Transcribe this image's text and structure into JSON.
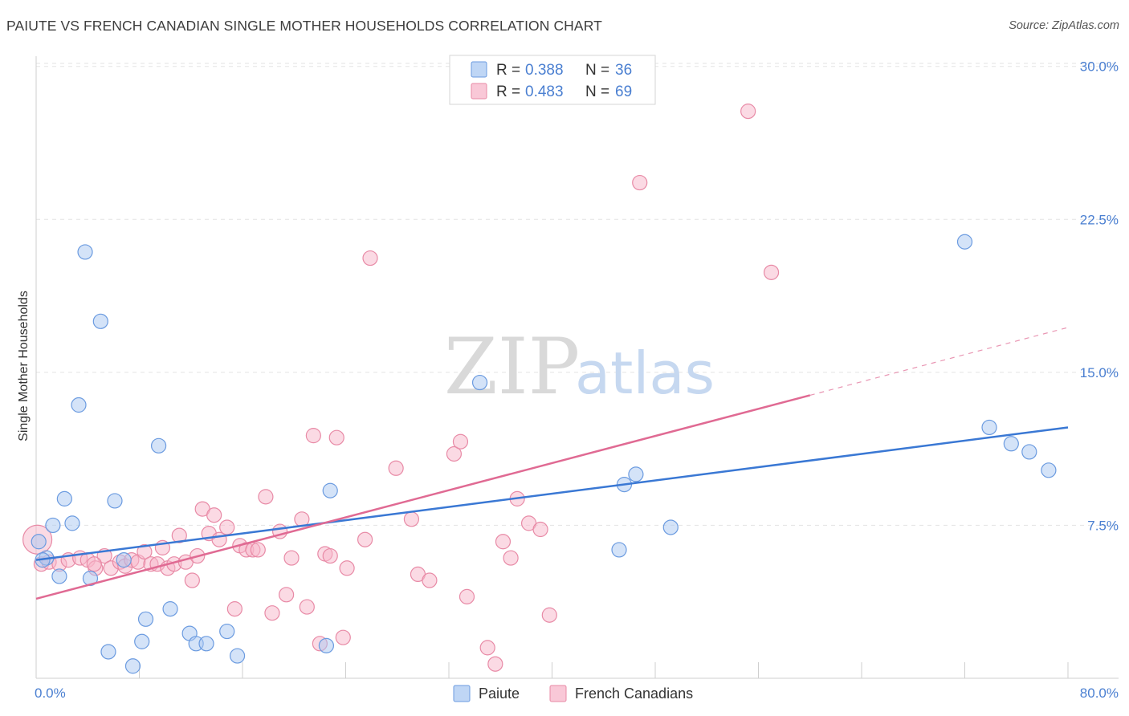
{
  "header": {
    "title": "PAIUTE VS FRENCH CANADIAN SINGLE MOTHER HOUSEHOLDS CORRELATION CHART",
    "source": "Source: ZipAtlas.com"
  },
  "watermark": {
    "zip": "ZIP",
    "atlas": "atlas"
  },
  "legend": {
    "rows": [
      {
        "r_label": "R =",
        "r_value": "0.388",
        "n_label": "N =",
        "n_value": "36"
      },
      {
        "r_label": "R =",
        "r_value": "0.483",
        "n_label": "N =",
        "n_value": "69"
      }
    ]
  },
  "bottom_legend": {
    "paiute": "Paiute",
    "french": "French Canadians"
  },
  "colors": {
    "paiute_fill": "#a9c8f2",
    "paiute_stroke": "#6b9be0",
    "paiute_line": "#3a78d4",
    "french_fill": "#f7b6c9",
    "french_stroke": "#e88aa6",
    "french_line": "#e06a93",
    "grid": "#e3e3e3",
    "axis_text": "#4a7fd1"
  },
  "chart_data": {
    "type": "scatter",
    "title": "PAIUTE VS FRENCH CANADIAN SINGLE MOTHER HOUSEHOLDS CORRELATION CHART",
    "xlabel": "",
    "ylabel": "Single Mother Households",
    "xlim": [
      0,
      80
    ],
    "ylim": [
      0,
      30.5
    ],
    "x_tick_labels": [
      "0.0%",
      "80.0%"
    ],
    "y_ticks": [
      7.5,
      15.0,
      22.5,
      30.0
    ],
    "y_tick_labels": [
      "7.5%",
      "15.0%",
      "22.5%",
      "30.0%"
    ],
    "grid": true,
    "legend_position": "top-center",
    "series": [
      {
        "name": "Paiute",
        "r": 0.388,
        "n": 36,
        "trend": {
          "x": [
            0,
            80
          ],
          "y": [
            5.8,
            12.3
          ],
          "dashed_from": null
        },
        "points": [
          [
            0.2,
            6.7
          ],
          [
            0.8,
            5.9
          ],
          [
            1.3,
            7.5
          ],
          [
            1.8,
            5.0
          ],
          [
            2.2,
            8.8
          ],
          [
            2.8,
            7.6
          ],
          [
            3.3,
            13.4
          ],
          [
            3.8,
            20.9
          ],
          [
            4.2,
            4.9
          ],
          [
            5.0,
            17.5
          ],
          [
            5.6,
            1.3
          ],
          [
            6.1,
            8.7
          ],
          [
            6.8,
            5.8
          ],
          [
            7.5,
            0.6
          ],
          [
            8.2,
            1.8
          ],
          [
            8.5,
            2.9
          ],
          [
            9.5,
            11.4
          ],
          [
            10.4,
            3.4
          ],
          [
            11.9,
            2.2
          ],
          [
            12.4,
            1.7
          ],
          [
            13.2,
            1.7
          ],
          [
            14.8,
            2.3
          ],
          [
            15.6,
            1.1
          ],
          [
            22.5,
            1.6
          ],
          [
            22.8,
            9.2
          ],
          [
            34.4,
            14.5
          ],
          [
            45.2,
            6.3
          ],
          [
            45.6,
            9.5
          ],
          [
            46.5,
            10.0
          ],
          [
            49.2,
            7.4
          ],
          [
            72.0,
            21.4
          ],
          [
            73.9,
            12.3
          ],
          [
            75.6,
            11.5
          ],
          [
            77.0,
            11.1
          ],
          [
            78.5,
            10.2
          ],
          [
            0.5,
            5.8
          ]
        ]
      },
      {
        "name": "French Canadians",
        "r": 0.483,
        "n": 69,
        "trend": {
          "x": [
            0,
            80
          ],
          "y": [
            3.9,
            17.2
          ],
          "dashed_from": 60
        },
        "points": [
          [
            0.1,
            6.8
          ],
          [
            0.4,
            5.6
          ],
          [
            1.0,
            5.7
          ],
          [
            1.8,
            5.6
          ],
          [
            2.5,
            5.8
          ],
          [
            3.4,
            5.9
          ],
          [
            4.0,
            5.8
          ],
          [
            4.6,
            5.4
          ],
          [
            5.3,
            6.0
          ],
          [
            5.8,
            5.4
          ],
          [
            6.5,
            5.7
          ],
          [
            6.9,
            5.5
          ],
          [
            7.4,
            5.8
          ],
          [
            7.9,
            5.7
          ],
          [
            8.4,
            6.2
          ],
          [
            8.9,
            5.6
          ],
          [
            9.4,
            5.6
          ],
          [
            9.8,
            6.4
          ],
          [
            10.2,
            5.4
          ],
          [
            10.7,
            5.6
          ],
          [
            11.1,
            7.0
          ],
          [
            11.6,
            5.7
          ],
          [
            12.1,
            4.8
          ],
          [
            12.5,
            6.0
          ],
          [
            12.9,
            8.3
          ],
          [
            13.4,
            7.1
          ],
          [
            13.8,
            8.0
          ],
          [
            14.2,
            6.8
          ],
          [
            14.8,
            7.4
          ],
          [
            15.4,
            3.4
          ],
          [
            15.8,
            6.5
          ],
          [
            16.3,
            6.3
          ],
          [
            16.8,
            6.3
          ],
          [
            17.2,
            6.3
          ],
          [
            17.8,
            8.9
          ],
          [
            18.3,
            3.2
          ],
          [
            18.9,
            7.2
          ],
          [
            19.4,
            4.1
          ],
          [
            19.8,
            5.9
          ],
          [
            20.6,
            7.8
          ],
          [
            21.0,
            3.5
          ],
          [
            21.5,
            11.9
          ],
          [
            22.0,
            1.7
          ],
          [
            22.4,
            6.1
          ],
          [
            22.8,
            6.0
          ],
          [
            23.3,
            11.8
          ],
          [
            23.8,
            2.0
          ],
          [
            24.1,
            5.4
          ],
          [
            25.5,
            6.8
          ],
          [
            25.9,
            20.6
          ],
          [
            27.9,
            10.3
          ],
          [
            29.1,
            7.8
          ],
          [
            29.6,
            5.1
          ],
          [
            30.5,
            4.8
          ],
          [
            32.4,
            11.0
          ],
          [
            32.9,
            11.6
          ],
          [
            33.4,
            4.0
          ],
          [
            35.0,
            1.5
          ],
          [
            35.6,
            0.7
          ],
          [
            36.2,
            6.7
          ],
          [
            36.8,
            5.9
          ],
          [
            37.3,
            8.8
          ],
          [
            38.2,
            7.6
          ],
          [
            39.1,
            7.3
          ],
          [
            39.8,
            3.1
          ],
          [
            46.8,
            24.3
          ],
          [
            55.2,
            27.8
          ],
          [
            57.0,
            19.9
          ],
          [
            4.5,
            5.6
          ]
        ]
      }
    ]
  }
}
